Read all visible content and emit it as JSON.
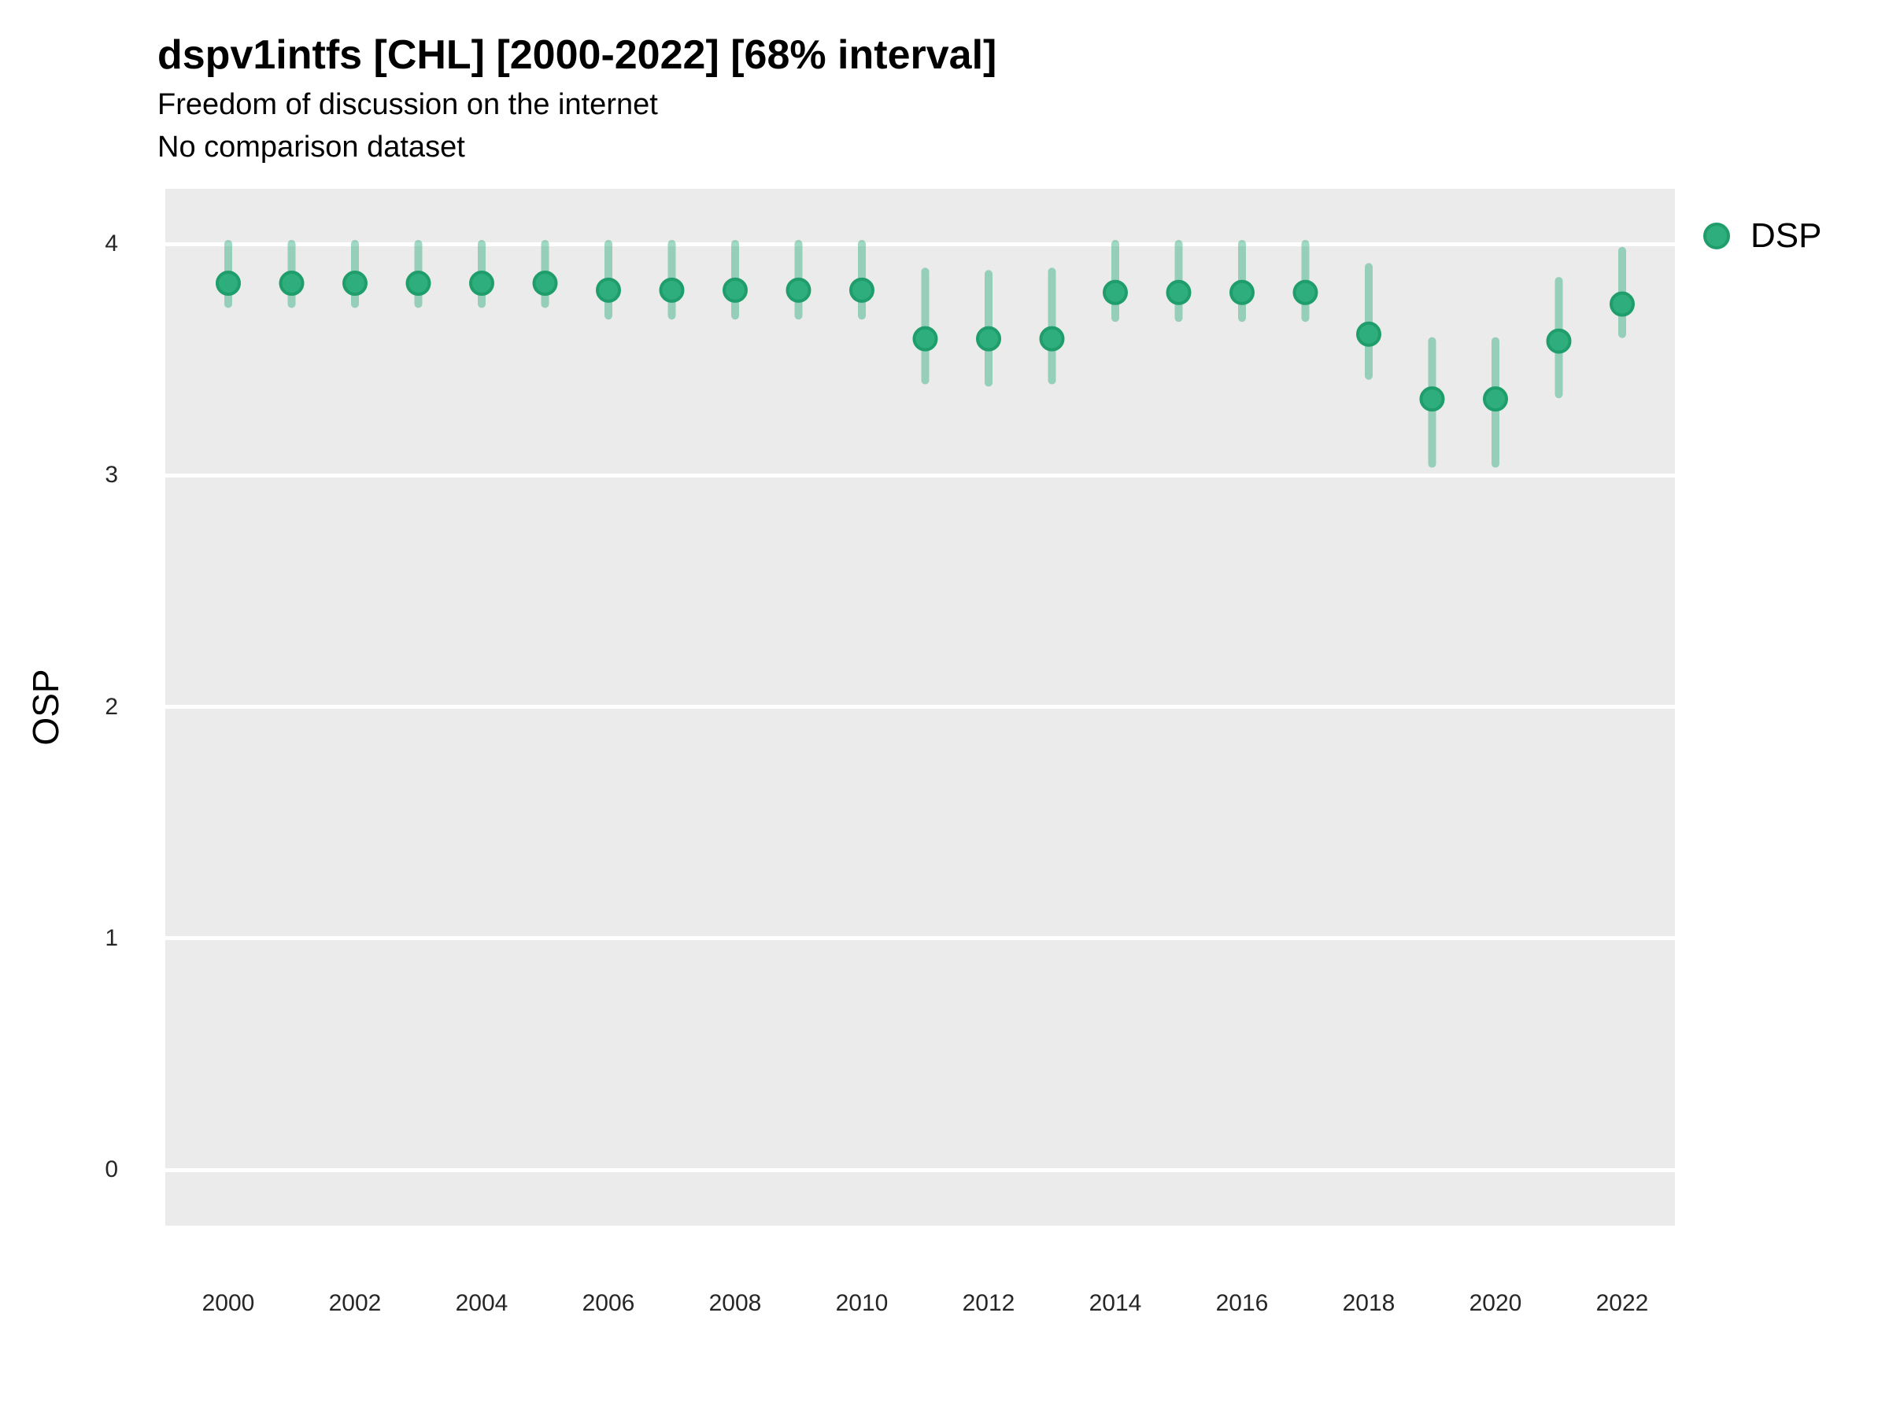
{
  "header": {
    "title": "dspv1intfs [CHL] [2000-2022] [68% interval]",
    "subtitle1": "Freedom of discussion on the internet",
    "subtitle2": "No comparison dataset"
  },
  "legend": {
    "label": "DSP"
  },
  "axes": {
    "y_label": "OSP",
    "y_ticks": [
      4,
      3,
      2,
      1,
      0
    ],
    "x_ticks": [
      2000,
      2002,
      2004,
      2006,
      2008,
      2010,
      2012,
      2014,
      2016,
      2018,
      2020,
      2022
    ]
  },
  "colors": {
    "point_fill": "#2eae7d",
    "point_stroke": "#1f9e6c",
    "interval": "rgba(47,174,125,0.45)",
    "panel_bg": "#ebebeb",
    "gridline": "#ffffff",
    "text": "#000000"
  },
  "chart_data": {
    "type": "scatter",
    "title": "dspv1intfs [CHL] [2000-2022] [68% interval]",
    "subtitle": [
      "Freedom of discussion on the internet",
      "No comparison dataset"
    ],
    "xlabel": "",
    "ylabel": "OSP",
    "interval_level": "68%",
    "ylim": [
      0,
      4
    ],
    "grid": "horizontal-major-only",
    "legend_position": "right-top",
    "x": [
      2000,
      2001,
      2002,
      2003,
      2004,
      2005,
      2006,
      2007,
      2008,
      2009,
      2010,
      2011,
      2012,
      2013,
      2014,
      2015,
      2016,
      2017,
      2018,
      2019,
      2020,
      2021,
      2022
    ],
    "series": [
      {
        "name": "DSP",
        "values": [
          3.83,
          3.83,
          3.83,
          3.83,
          3.83,
          3.83,
          3.8,
          3.8,
          3.8,
          3.8,
          3.8,
          3.59,
          3.59,
          3.59,
          3.79,
          3.79,
          3.79,
          3.79,
          3.61,
          3.33,
          3.33,
          3.58,
          3.74
        ],
        "lower": [
          3.74,
          3.74,
          3.74,
          3.74,
          3.74,
          3.74,
          3.69,
          3.69,
          3.69,
          3.69,
          3.69,
          3.41,
          3.4,
          3.41,
          3.68,
          3.68,
          3.68,
          3.68,
          3.43,
          3.05,
          3.05,
          3.35,
          3.61
        ],
        "upper": [
          4.0,
          4.0,
          4.0,
          4.0,
          4.0,
          4.0,
          4.0,
          4.0,
          4.0,
          4.0,
          4.0,
          3.88,
          3.87,
          3.88,
          4.0,
          4.0,
          4.0,
          4.0,
          3.9,
          3.58,
          3.58,
          3.84,
          3.97
        ]
      }
    ]
  }
}
